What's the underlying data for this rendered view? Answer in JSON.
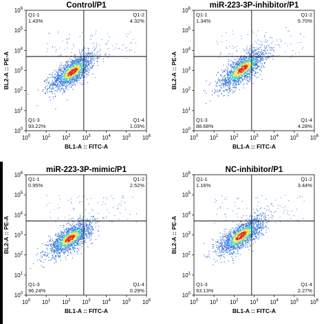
{
  "chart_data": [
    {
      "type": "scatter",
      "title": "Control/P1",
      "xlabel": "BL1-A :: FITC-A",
      "ylabel": "BL2-A :: PE-A",
      "xscale": "log",
      "yscale": "log",
      "xlim": [
        1,
        1000000
      ],
      "ylim": [
        1,
        1000000
      ],
      "gate": {
        "x": 750,
        "y": 5000
      },
      "quadrants": [
        {
          "name": "Q1-1",
          "pct": "1.43%"
        },
        {
          "name": "Q1-2",
          "pct": "4.32%"
        },
        {
          "name": "Q1-3",
          "pct": "93.22%"
        },
        {
          "name": "Q1-4",
          "pct": "1.03%"
        }
      ],
      "population": {
        "center_x": 200,
        "center_y": 900,
        "spread_log_x": 0.55,
        "spread_log_y": 0.45,
        "correlation": 0.7
      }
    },
    {
      "type": "scatter",
      "title": "miR-223-3P-inhibitor/P1",
      "xlabel": "BL1-A :: FITC-A",
      "ylabel": "BL2-A :: PE-A",
      "xscale": "log",
      "yscale": "log",
      "xlim": [
        1,
        1000000
      ],
      "ylim": [
        1,
        1000000
      ],
      "gate": {
        "x": 750,
        "y": 5000
      },
      "quadrants": [
        {
          "name": "Q1-1",
          "pct": "1.34%"
        },
        {
          "name": "Q1-2",
          "pct": "5.70%"
        },
        {
          "name": "Q1-3",
          "pct": "88.68%"
        },
        {
          "name": "Q1-4",
          "pct": "4.28%"
        }
      ],
      "population": {
        "center_x": 250,
        "center_y": 1200,
        "spread_log_x": 0.6,
        "spread_log_y": 0.5,
        "correlation": 0.75
      }
    },
    {
      "type": "scatter",
      "title": "miR-223-3P-mimic/P1",
      "xlabel": "BL1-A :: FITC-A",
      "ylabel": "BL2-A :: PE-A",
      "xscale": "log",
      "yscale": "log",
      "xlim": [
        1,
        1000000
      ],
      "ylim": [
        1,
        1000000
      ],
      "gate": {
        "x": 750,
        "y": 5000
      },
      "quadrants": [
        {
          "name": "Q1-1",
          "pct": "0.95%"
        },
        {
          "name": "Q1-2",
          "pct": "2.52%"
        },
        {
          "name": "Q1-3",
          "pct": "96.24%"
        },
        {
          "name": "Q1-4",
          "pct": "0.29%"
        }
      ],
      "population": {
        "center_x": 150,
        "center_y": 700,
        "spread_log_x": 0.55,
        "spread_log_y": 0.42,
        "correlation": 0.7
      }
    },
    {
      "type": "scatter",
      "title": "NC-inhibitor/P1",
      "xlabel": "BL1-A :: FITC-A",
      "ylabel": "BL2-A :: PE-A",
      "xscale": "log",
      "yscale": "log",
      "xlim": [
        1,
        1000000
      ],
      "ylim": [
        1,
        1000000
      ],
      "gate": {
        "x": 750,
        "y": 5000
      },
      "quadrants": [
        {
          "name": "Q1-1",
          "pct": "1.16%"
        },
        {
          "name": "Q1-2",
          "pct": "3.44%"
        },
        {
          "name": "Q1-3",
          "pct": "93.13%"
        },
        {
          "name": "Q1-4",
          "pct": "2.27%"
        }
      ],
      "population": {
        "center_x": 220,
        "center_y": 950,
        "spread_log_x": 0.58,
        "spread_log_y": 0.46,
        "correlation": 0.72
      }
    }
  ],
  "tick_labels": [
    "0",
    "1",
    "2",
    "3",
    "4",
    "5",
    "6"
  ],
  "colors": {
    "low": "#3a74d8",
    "mid": "#39c9d6",
    "hi": "#f2e23a",
    "peak": "#e0281f",
    "gate_line": "#000000"
  }
}
